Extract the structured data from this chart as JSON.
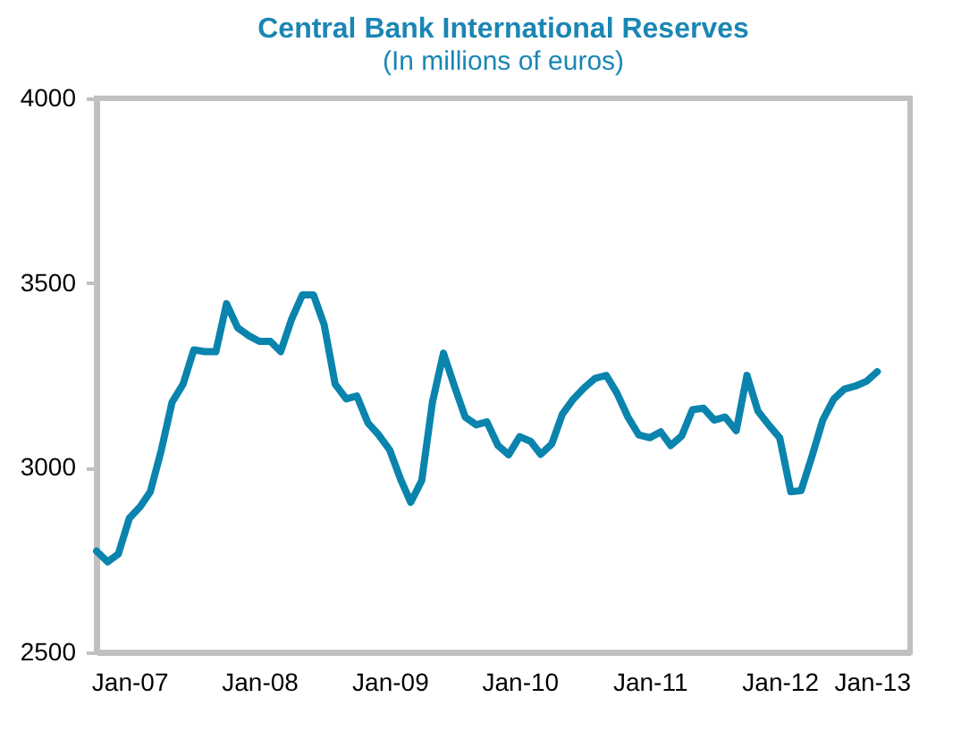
{
  "chart_data": {
    "type": "line",
    "title": "Central Bank  International Reserves",
    "subtitle": "(In millions of euros)",
    "x": [
      "2006-10",
      "2006-11",
      "2006-12",
      "2007-01",
      "2007-02",
      "2007-03",
      "2007-04",
      "2007-05",
      "2007-06",
      "2007-07",
      "2007-08",
      "2007-09",
      "2007-10",
      "2007-11",
      "2007-12",
      "2008-01",
      "2008-02",
      "2008-03",
      "2008-04",
      "2008-05",
      "2008-06",
      "2008-07",
      "2008-08",
      "2008-09",
      "2008-10",
      "2008-11",
      "2008-12",
      "2009-01",
      "2009-02",
      "2009-03",
      "2009-04",
      "2009-05",
      "2009-06",
      "2009-07",
      "2009-08",
      "2009-09",
      "2009-10",
      "2009-11",
      "2009-12",
      "2010-01",
      "2010-02",
      "2010-03",
      "2010-04",
      "2010-05",
      "2010-06",
      "2010-07",
      "2010-08",
      "2010-09",
      "2010-10",
      "2010-11",
      "2010-12",
      "2011-01",
      "2011-02",
      "2011-03",
      "2011-04",
      "2011-05",
      "2011-06",
      "2011-07",
      "2011-08",
      "2011-09",
      "2011-10",
      "2011-11",
      "2011-12",
      "2012-01",
      "2012-02",
      "2012-03",
      "2012-04",
      "2012-05",
      "2012-06",
      "2012-07",
      "2012-08",
      "2012-09",
      "2012-10"
    ],
    "series": [
      {
        "color": "#0a84ad",
        "values": [
          2774,
          2745,
          2766,
          2863,
          2895,
          2935,
          3048,
          3177,
          3226,
          3319,
          3314,
          3314,
          3444,
          3379,
          3358,
          3342,
          3342,
          3314,
          3403,
          3468,
          3468,
          3387,
          3226,
          3186,
          3194,
          3121,
          3089,
          3048,
          2968,
          2906,
          2965,
          3177,
          3310,
          3223,
          3137,
          3116,
          3124,
          3060,
          3035,
          3084,
          3071,
          3036,
          3064,
          3145,
          3186,
          3216,
          3242,
          3250,
          3202,
          3137,
          3089,
          3081,
          3097,
          3060,
          3086,
          3157,
          3161,
          3129,
          3137,
          3100,
          3250,
          3153,
          3116,
          3081,
          2935,
          2938,
          3032,
          3129,
          3186,
          3213,
          3221,
          3234,
          3260
        ]
      }
    ],
    "xlim": [
      "2006-10",
      "2013-01"
    ],
    "xticks": [
      {
        "value": "2007-01",
        "label": "Jan-07"
      },
      {
        "value": "2008-01",
        "label": "Jan-08"
      },
      {
        "value": "2009-01",
        "label": "Jan-09"
      },
      {
        "value": "2010-01",
        "label": "Jan-10"
      },
      {
        "value": "2011-01",
        "label": "Jan-11"
      },
      {
        "value": "2012-01",
        "label": "Jan-12"
      },
      {
        "value": "2013-01",
        "label": "Jan-13"
      }
    ],
    "ylim": [
      2500,
      4000
    ],
    "yticks": [
      2500,
      3000,
      3500,
      4000
    ],
    "grid": false,
    "legend": false,
    "line_style": "solid"
  }
}
